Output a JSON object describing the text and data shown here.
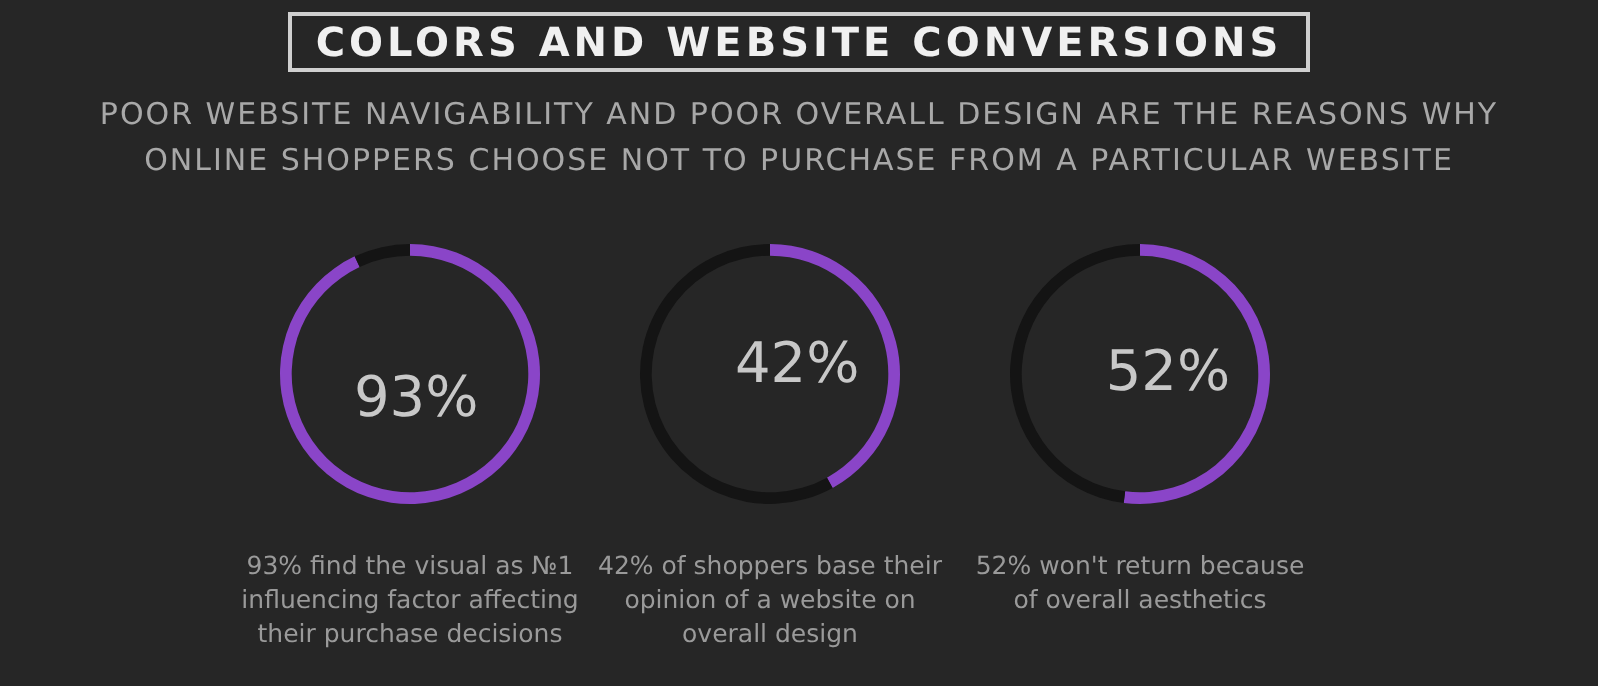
{
  "chart_data": [
    {
      "type": "donut",
      "title": "COLORS AND WEBSITE CONVERSIONS",
      "subtitle": "POOR WEBSITE NAVIGABILITY AND POOR OVERALL DESIGN ARE THE REASONS WHY ONLINE SHOPPERS CHOOSE NOT TO PURCHASE FROM A PARTICULAR WEBSITE",
      "categories": [
        null,
        null
      ],
      "values": [
        93,
        7
      ],
      "colors": [
        "#8a45c8",
        "#141414"
      ],
      "value_labels": [
        "93%",
        null
      ],
      "annotations": [
        "93% find the visual as №1 influencing factor affecting their purchase decisions"
      ]
    },
    {
      "type": "donut",
      "categories": [
        null,
        null
      ],
      "values": [
        42,
        58
      ],
      "colors": [
        "#8a45c8",
        "#141414"
      ],
      "value_labels": [
        "42%",
        null
      ],
      "annotations": [
        "42% of shoppers base their opinion of a website on overall design"
      ]
    },
    {
      "type": "donut",
      "categories": [
        null,
        null
      ],
      "values": [
        52,
        48
      ],
      "colors": [
        "#8a45c8",
        "#141414"
      ],
      "value_labels": [
        "52%",
        null
      ],
      "annotations": [
        "52% won't return because of overall aesthetics"
      ]
    }
  ]
}
